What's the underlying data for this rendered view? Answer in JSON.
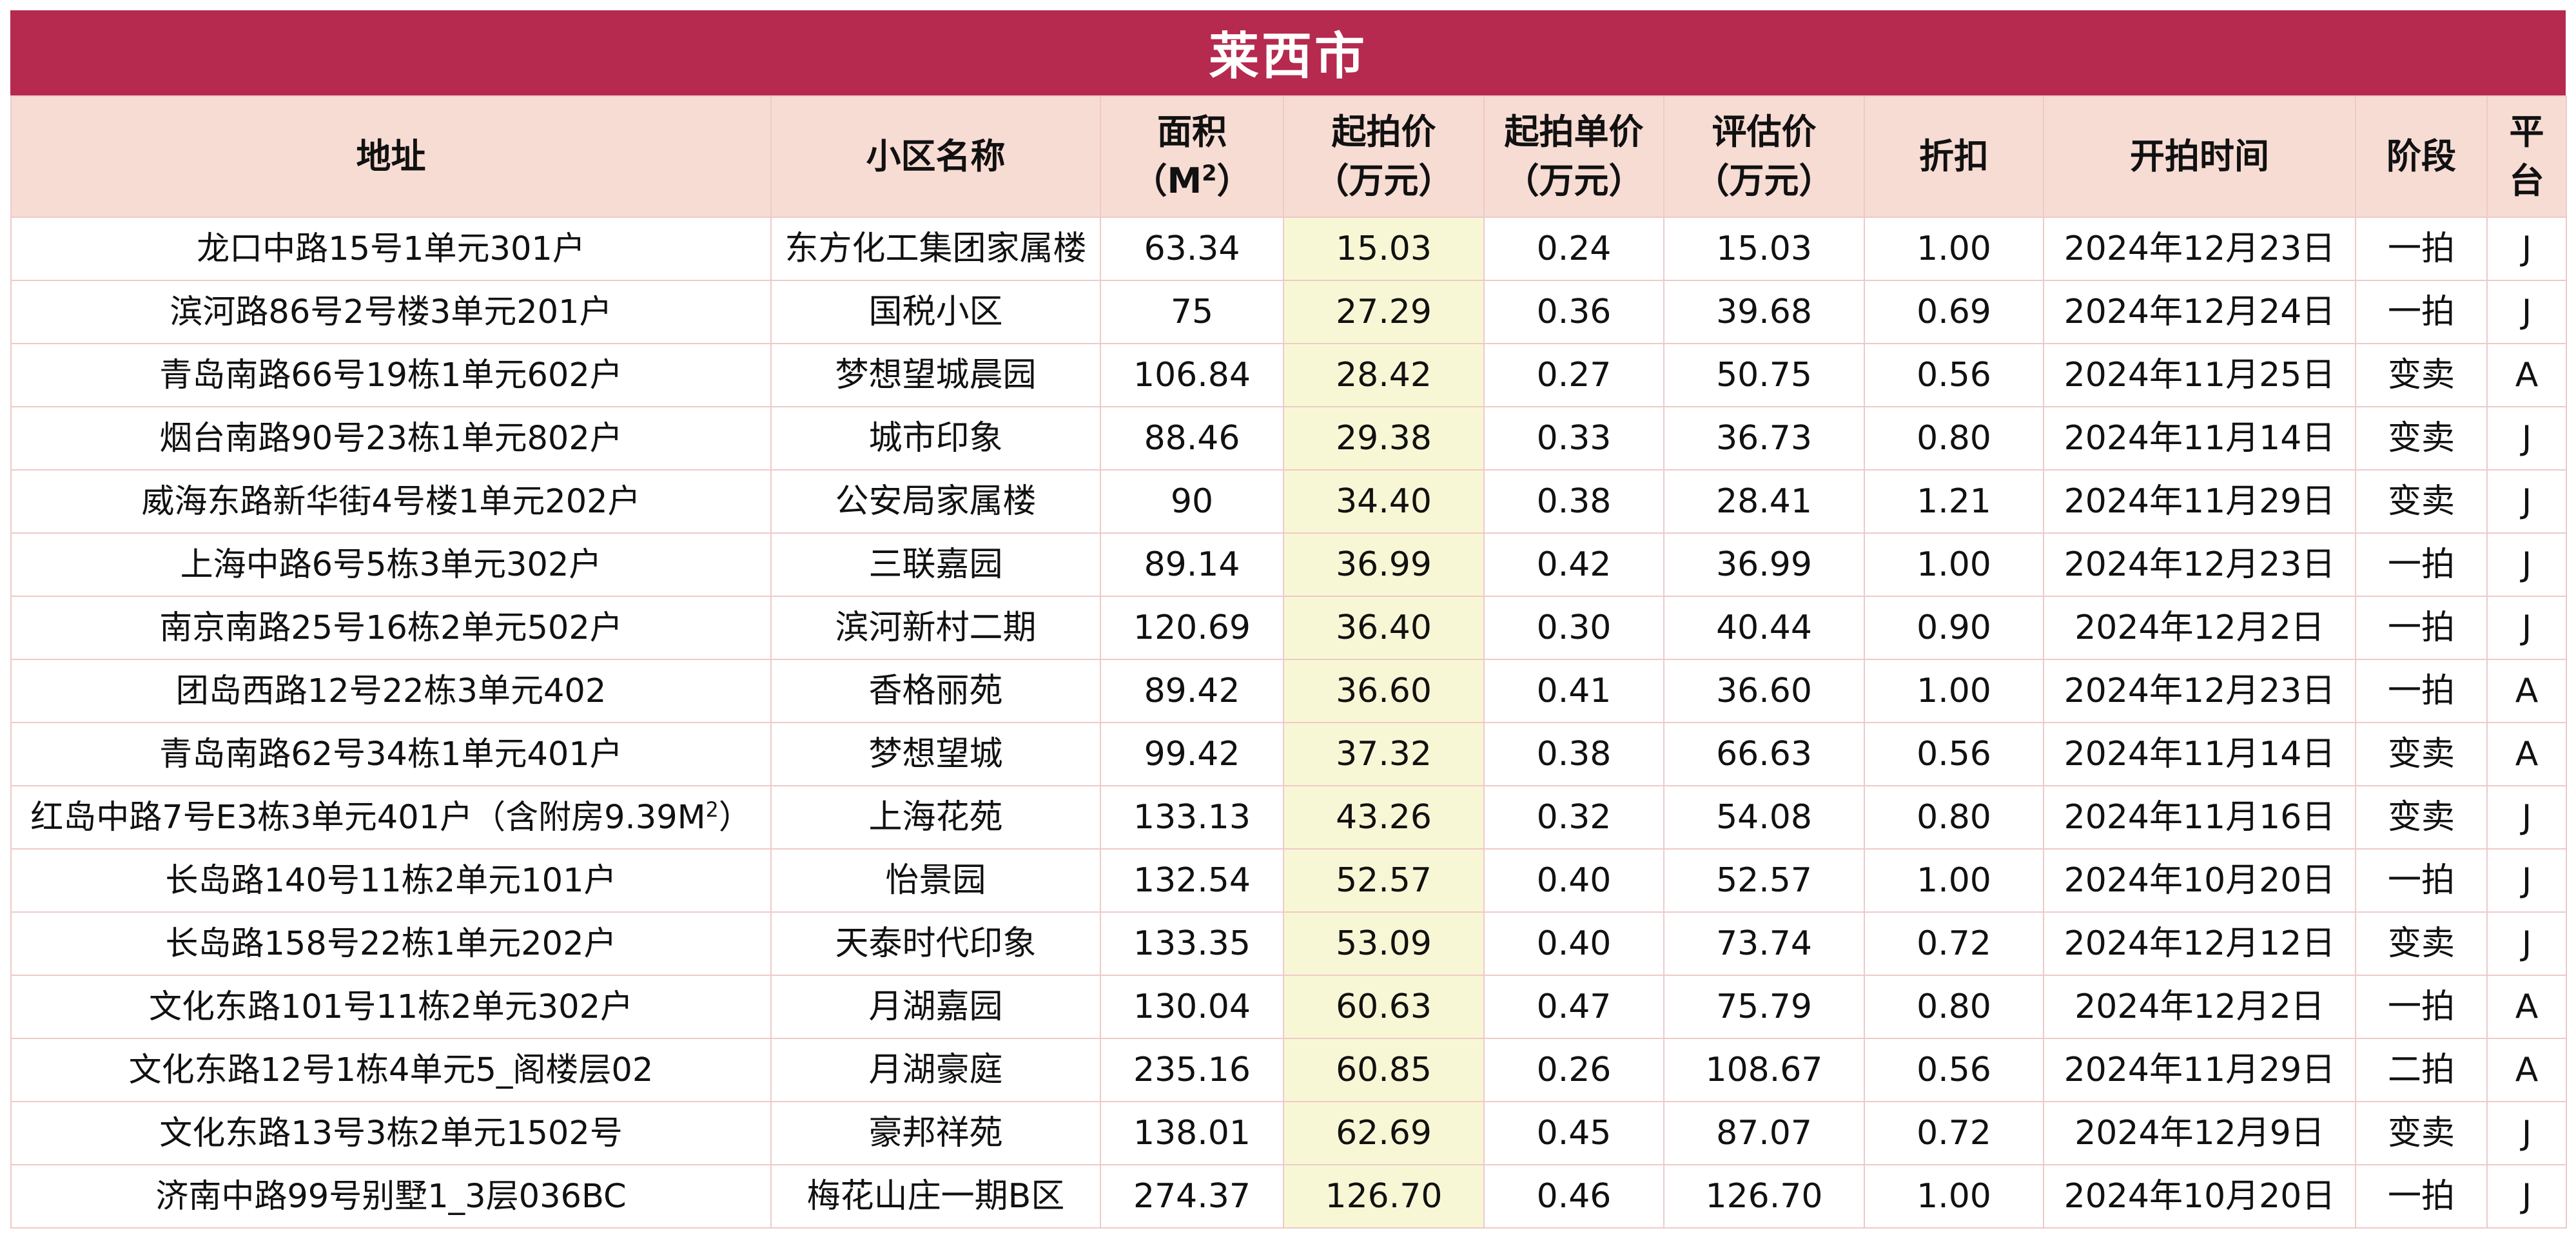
{
  "title": "莱西市",
  "columns": {
    "address": "地址",
    "community": "小区名称",
    "area_top": "面积",
    "area_bottom_prefix": "（M",
    "area_sup": "2",
    "area_bottom_suffix": "）",
    "start_price_top": "起拍价",
    "start_price_bottom": "（万元）",
    "unit_price_top": "起拍单价",
    "unit_price_bottom": "（万元）",
    "eval_price_top": "评估价",
    "eval_price_bottom": "（万元）",
    "discount": "折扣",
    "auction_time": "开拍时间",
    "stage": "阶段",
    "platform_top": "平",
    "platform_bottom": "台"
  },
  "rows": [
    {
      "address": "龙口中路15号1单元301户",
      "community": "东方化工集团家属楼",
      "area": "63.34",
      "start_price": "15.03",
      "unit_price": "0.24",
      "eval_price": "15.03",
      "discount": "1.00",
      "time": "2024年12月23日",
      "stage": "一拍",
      "platform": "J"
    },
    {
      "address": "滨河路86号2号楼3单元201户",
      "community": "国税小区",
      "area": "75",
      "start_price": "27.29",
      "unit_price": "0.36",
      "eval_price": "39.68",
      "discount": "0.69",
      "time": "2024年12月24日",
      "stage": "一拍",
      "platform": "J"
    },
    {
      "address": "青岛南路66号19栋1单元602户",
      "community": "梦想望城晨园",
      "area": "106.84",
      "start_price": "28.42",
      "unit_price": "0.27",
      "eval_price": "50.75",
      "discount": "0.56",
      "time": "2024年11月25日",
      "stage": "变卖",
      "platform": "A"
    },
    {
      "address": "烟台南路90号23栋1单元802户",
      "community": "城市印象",
      "area": "88.46",
      "start_price": "29.38",
      "unit_price": "0.33",
      "eval_price": "36.73",
      "discount": "0.80",
      "time": "2024年11月14日",
      "stage": "变卖",
      "platform": "J"
    },
    {
      "address": "威海东路新华街4号楼1单元202户",
      "community": "公安局家属楼",
      "area": "90",
      "start_price": "34.40",
      "unit_price": "0.38",
      "eval_price": "28.41",
      "discount": "1.21",
      "time": "2024年11月29日",
      "stage": "变卖",
      "platform": "J"
    },
    {
      "address": "上海中路6号5栋3单元302户",
      "community": "三联嘉园",
      "area": "89.14",
      "start_price": "36.99",
      "unit_price": "0.42",
      "eval_price": "36.99",
      "discount": "1.00",
      "time": "2024年12月23日",
      "stage": "一拍",
      "platform": "J"
    },
    {
      "address": "南京南路25号16栋2单元502户",
      "community": "滨河新村二期",
      "area": "120.69",
      "start_price": "36.40",
      "unit_price": "0.30",
      "eval_price": "40.44",
      "discount": "0.90",
      "time": "2024年12月2日",
      "stage": "一拍",
      "platform": "J"
    },
    {
      "address": "团岛西路12号22栋3单元402",
      "community": "香格丽苑",
      "area": "89.42",
      "start_price": "36.60",
      "unit_price": "0.41",
      "eval_price": "36.60",
      "discount": "1.00",
      "time": "2024年12月23日",
      "stage": "一拍",
      "platform": "A"
    },
    {
      "address": "青岛南路62号34栋1单元401户",
      "community": "梦想望城",
      "area": "99.42",
      "start_price": "37.32",
      "unit_price": "0.38",
      "eval_price": "66.63",
      "discount": "0.56",
      "time": "2024年11月14日",
      "stage": "变卖",
      "platform": "A"
    },
    {
      "address": "红岛中路7号E3栋3单元401户（含附房9.39M",
      "address_sup": "2",
      "address_suffix": "）",
      "community": "上海花苑",
      "area": "133.13",
      "start_price": "43.26",
      "unit_price": "0.32",
      "eval_price": "54.08",
      "discount": "0.80",
      "time": "2024年11月16日",
      "stage": "变卖",
      "platform": "J"
    },
    {
      "address": "长岛路140号11栋2单元101户",
      "community": "怡景园",
      "area": "132.54",
      "start_price": "52.57",
      "unit_price": "0.40",
      "eval_price": "52.57",
      "discount": "1.00",
      "time": "2024年10月20日",
      "stage": "一拍",
      "platform": "J"
    },
    {
      "address": "长岛路158号22栋1单元202户",
      "community": "天泰时代印象",
      "area": "133.35",
      "start_price": "53.09",
      "unit_price": "0.40",
      "eval_price": "73.74",
      "discount": "0.72",
      "time": "2024年12月12日",
      "stage": "变卖",
      "platform": "J"
    },
    {
      "address": "文化东路101号11栋2单元302户",
      "community": "月湖嘉园",
      "area": "130.04",
      "start_price": "60.63",
      "unit_price": "0.47",
      "eval_price": "75.79",
      "discount": "0.80",
      "time": "2024年12月2日",
      "stage": "一拍",
      "platform": "A"
    },
    {
      "address": "文化东路12号1栋4单元5_阁楼层02",
      "community": "月湖豪庭",
      "area": "235.16",
      "start_price": "60.85",
      "unit_price": "0.26",
      "eval_price": "108.67",
      "discount": "0.56",
      "time": "2024年11月29日",
      "stage": "二拍",
      "platform": "A"
    },
    {
      "address": "文化东路13号3栋2单元1502号",
      "community": "豪邦祥苑",
      "area": "138.01",
      "start_price": "62.69",
      "unit_price": "0.45",
      "eval_price": "87.07",
      "discount": "0.72",
      "time": "2024年12月9日",
      "stage": "变卖",
      "platform": "J"
    },
    {
      "address": "济南中路99号别墅1_3层036BC",
      "community": "梅花山庄一期B区",
      "area": "274.37",
      "start_price": "126.70",
      "unit_price": "0.46",
      "eval_price": "126.70",
      "discount": "1.00",
      "time": "2024年10月20日",
      "stage": "一拍",
      "platform": "J"
    }
  ]
}
